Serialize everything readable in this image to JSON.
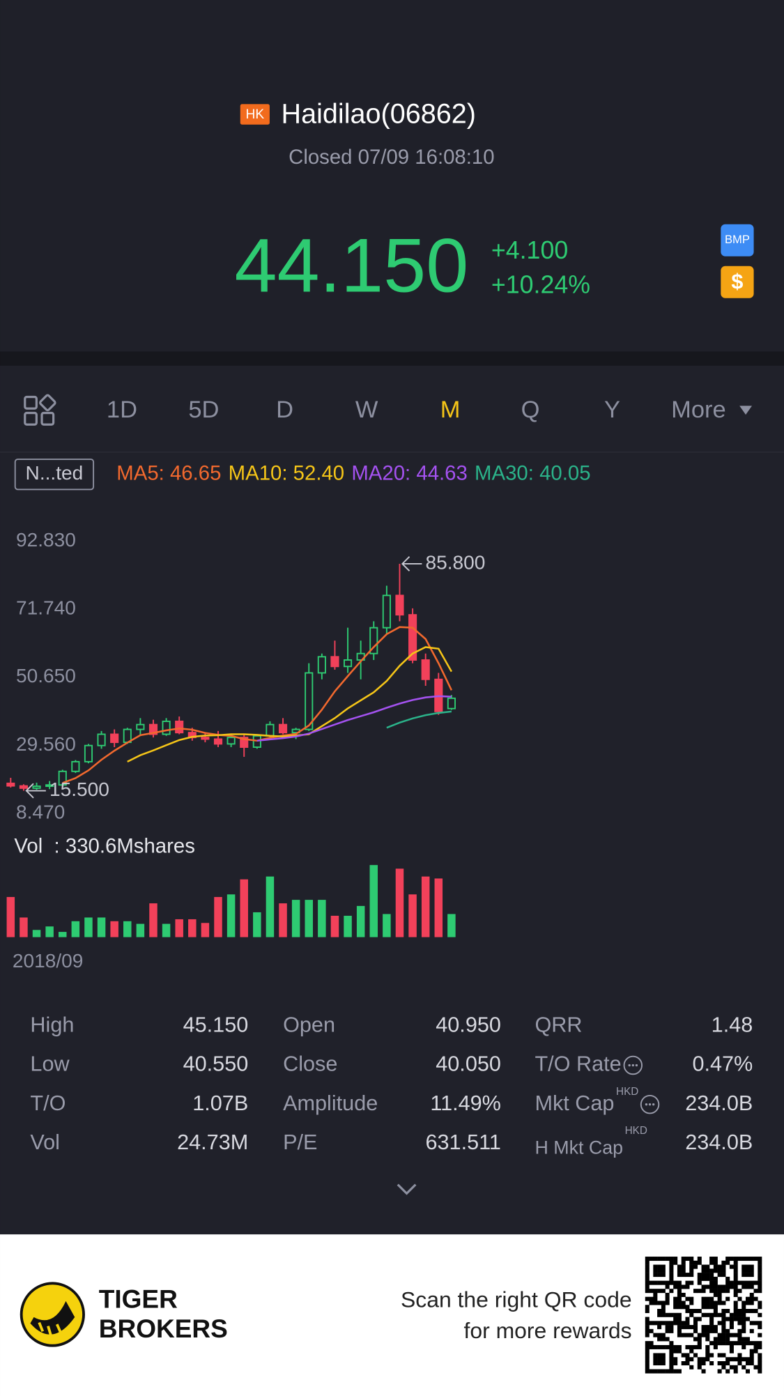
{
  "header": {
    "badge": "HK",
    "name": "Haidilao(06862)",
    "status": "Closed 07/09 16:08:10"
  },
  "quote": {
    "price": "44.150",
    "change": "+4.100",
    "change_pct": "+10.24%",
    "icons": [
      "BMP",
      "$"
    ]
  },
  "tabs": {
    "items": [
      "1D",
      "5D",
      "D",
      "W",
      "M",
      "Q",
      "Y",
      "More"
    ],
    "active": "M"
  },
  "indicator": {
    "label": "N...ted",
    "ma": [
      {
        "text": "MA5: 46.65",
        "color": "#f2692e"
      },
      {
        "text": "MA10: 52.40",
        "color": "#f5c518"
      },
      {
        "text": "MA20: 44.63",
        "color": "#a452f0"
      },
      {
        "text": "MA30: 40.05",
        "color": "#2bb38a"
      }
    ]
  },
  "chart": {
    "type": "candlestick",
    "up_color": "#2ecb72",
    "down_color": "#f2415a",
    "ylim": [
      8.47,
      92.83
    ],
    "yticks": [
      {
        "value": 92.83,
        "label": "92.830"
      },
      {
        "value": 71.74,
        "label": "71.740"
      },
      {
        "value": 50.65,
        "label": "50.650"
      },
      {
        "value": 29.56,
        "label": "29.560"
      },
      {
        "value": 8.47,
        "label": "8.470"
      }
    ],
    "open": [
      17.8,
      17.0,
      16.3,
      16.9,
      17.3,
      21.5,
      24.5,
      29.5,
      33.0,
      30.5,
      34.5,
      36.0,
      33.0,
      37.0,
      33.5,
      32.0,
      31.5,
      30,
      32,
      29,
      32.5,
      36,
      33.5,
      34.5,
      52,
      57,
      54,
      56,
      58,
      66,
      76,
      70,
      56,
      50,
      40.95
    ],
    "high": [
      19.5,
      17.5,
      18,
      18.5,
      22,
      25,
      30,
      34,
      34.5,
      35,
      38,
      37.5,
      38,
      38.5,
      35,
      33.5,
      34,
      33,
      33,
      33,
      37,
      38,
      35,
      55,
      58,
      62,
      66,
      62,
      68,
      79,
      85.8,
      72,
      58,
      52,
      45.15
    ],
    "low": [
      16.5,
      15.5,
      15.8,
      16,
      17,
      21,
      24,
      28.5,
      29,
      30,
      32.5,
      32,
      32.5,
      33,
      31,
      30.5,
      29,
      29,
      26,
      28.5,
      32,
      33,
      31.5,
      34,
      50,
      53,
      52,
      50,
      56,
      64,
      68,
      55,
      48,
      39,
      40.55
    ],
    "close": [
      17.0,
      16.3,
      16.9,
      17.3,
      21.5,
      24.5,
      29.5,
      33.0,
      30.5,
      34.5,
      36.0,
      33.0,
      37.0,
      33.5,
      32.0,
      31.5,
      30,
      32,
      29,
      32.5,
      36,
      33.5,
      34.5,
      52,
      57,
      54,
      56,
      58,
      66,
      76,
      70,
      56,
      50,
      40.05,
      44.15
    ],
    "ma_series": [
      {
        "name": "MA5",
        "color": "#f2692e",
        "values": [
          null,
          null,
          null,
          null,
          17.9,
          19.4,
          21.8,
          25.1,
          27.9,
          30.4,
          32.7,
          33.4,
          34.2,
          34.8,
          34.4,
          33.4,
          32.8,
          32.5,
          31.5,
          31.0,
          31.9,
          32.6,
          33.1,
          35.7,
          40.6,
          46.3,
          51.0,
          55.6,
          60.0,
          64.0,
          66.2,
          66.0,
          62.5,
          55.0,
          46.65
        ]
      },
      {
        "name": "MA10",
        "color": "#f5c518",
        "values": [
          null,
          null,
          null,
          null,
          null,
          null,
          null,
          null,
          null,
          24.5,
          26.5,
          28.0,
          29.6,
          31.2,
          32.2,
          32.6,
          32.7,
          33.0,
          33.0,
          32.8,
          32.5,
          32.3,
          32.6,
          33.0,
          35.5,
          38.0,
          41.0,
          43.5,
          46.0,
          49.5,
          54.2,
          58.0,
          60.0,
          59.5,
          52.4
        ]
      },
      {
        "name": "MA20",
        "color": "#a452f0",
        "values": [
          null,
          null,
          null,
          null,
          null,
          null,
          null,
          null,
          null,
          null,
          null,
          null,
          null,
          null,
          null,
          null,
          null,
          null,
          null,
          31.0,
          31.4,
          31.8,
          32.3,
          33.2,
          34.6,
          36.0,
          37.4,
          38.6,
          39.8,
          41.2,
          42.5,
          43.6,
          44.4,
          44.8,
          44.63
        ]
      },
      {
        "name": "MA30",
        "color": "#2bb38a",
        "values": [
          null,
          null,
          null,
          null,
          null,
          null,
          null,
          null,
          null,
          null,
          null,
          null,
          null,
          null,
          null,
          null,
          null,
          null,
          null,
          null,
          null,
          null,
          null,
          null,
          null,
          null,
          null,
          null,
          null,
          35.0,
          36.6,
          37.9,
          38.9,
          39.6,
          40.05
        ]
      }
    ],
    "max_mark": {
      "value": 85.8,
      "label": "85.800"
    },
    "min_mark": {
      "value": 15.5,
      "label": "15.500"
    },
    "volume_label": "Vol  : 330.6Mshares",
    "volume_lim": [
      0,
      330.6
    ],
    "volume": [
      184,
      90,
      33,
      49,
      24,
      73,
      90,
      90,
      73,
      73,
      61,
      155,
      61,
      82,
      82,
      65,
      184,
      196,
      265,
      114,
      278,
      155,
      171,
      171,
      171,
      98,
      98,
      143,
      330.6,
      106,
      314,
      196,
      278,
      269,
      106
    ],
    "start_label": "2018/09"
  },
  "stats": {
    "rows": [
      [
        {
          "label": "High",
          "value": "45.150"
        },
        {
          "label": "Open",
          "value": "40.950"
        },
        {
          "label": "QRR",
          "value": "1.48"
        }
      ],
      [
        {
          "label": "Low",
          "value": "40.550"
        },
        {
          "label": "Close",
          "value": "40.050"
        },
        {
          "label": "T/O Rate",
          "value": "0.47%"
        }
      ],
      [
        {
          "label": "T/O",
          "value": "1.07B"
        },
        {
          "label": "Amplitude",
          "value": "11.49%"
        },
        {
          "label": "Mkt Cap",
          "unit": "HKD",
          "value": "234.0B"
        }
      ],
      [
        {
          "label": "Vol",
          "value": "24.73M"
        },
        {
          "label": "P/E",
          "value": "631.511"
        },
        {
          "label": "H Mkt Cap",
          "unit": "HKD",
          "value": "234.0B"
        }
      ]
    ]
  },
  "footer": {
    "brand": [
      "TIGER",
      "BROKERS"
    ],
    "promo": [
      "Scan the right QR code",
      "for more rewards"
    ]
  }
}
